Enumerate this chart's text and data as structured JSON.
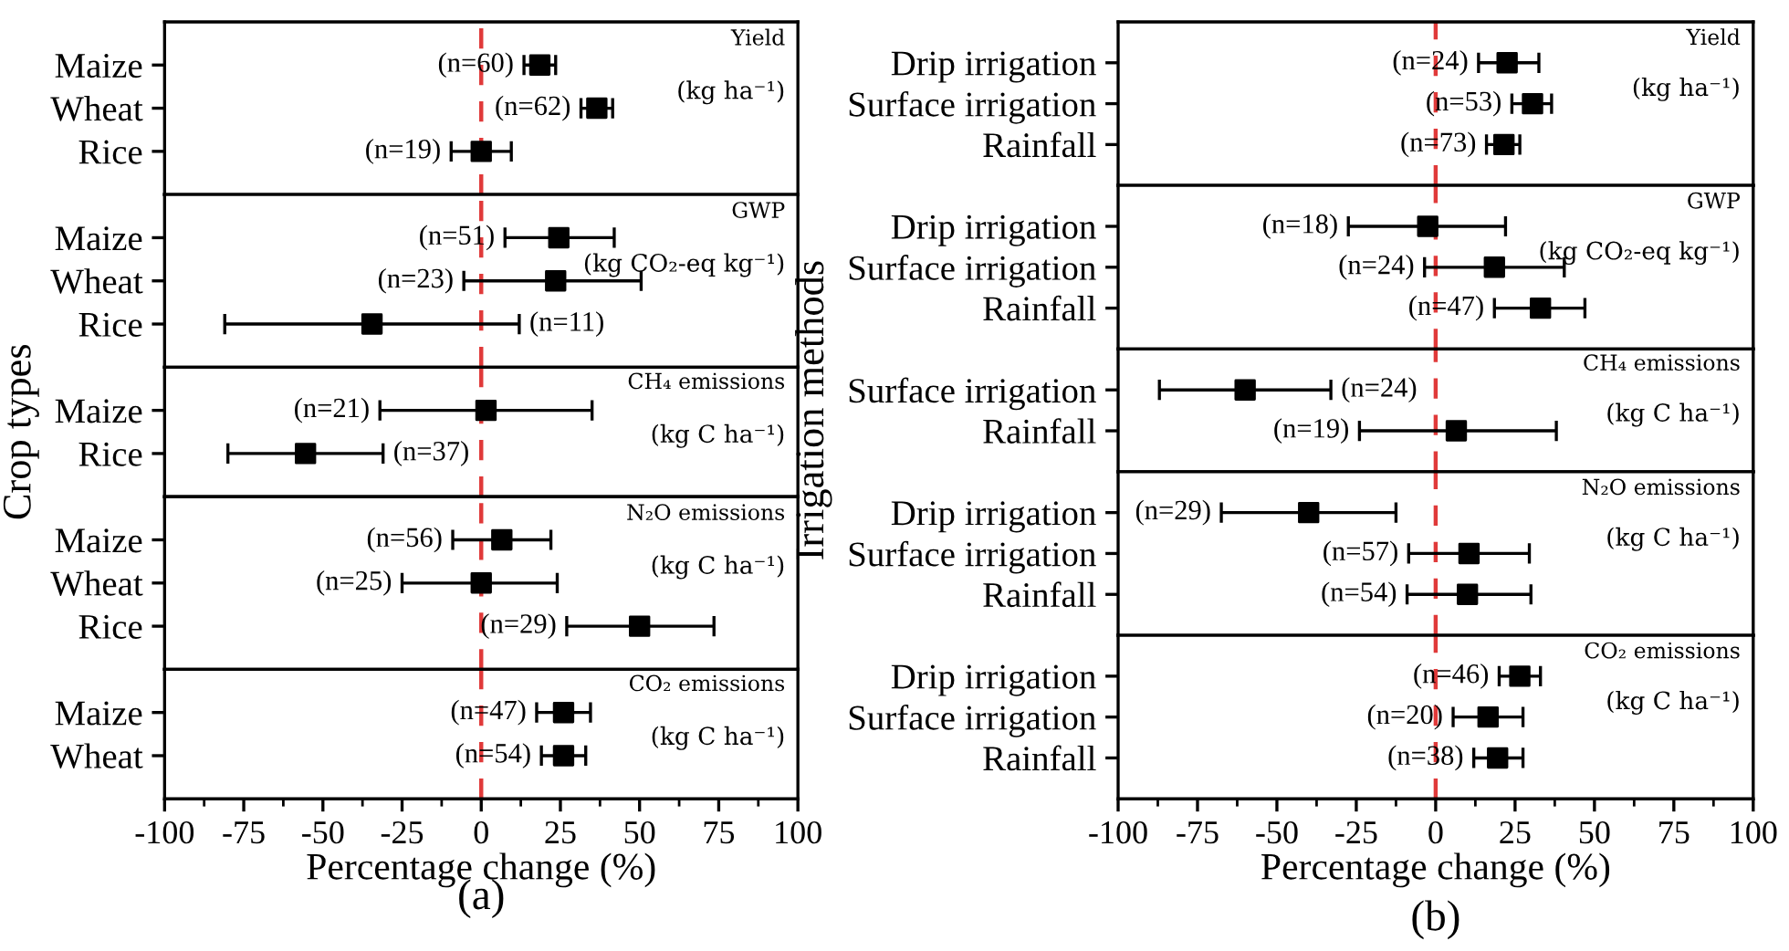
{
  "chart_data": [
    {
      "type": "scatter",
      "orientation": "horizontal",
      "categories": [
        "Maize",
        "Wheat",
        "Rice"
      ],
      "values": [
        18.5,
        36.5,
        0
      ],
      "errors": [
        [
          13.5,
          23.5
        ],
        [
          31.5,
          41.5
        ],
        [
          -9.5,
          9.5
        ]
      ],
      "color": "#000000",
      "marker": "square",
      "xlim": [
        -100,
        100
      ],
      "xticks": [
        -100,
        -75,
        -50,
        -25,
        0,
        25,
        50,
        75,
        100
      ],
      "tick_labels": "y",
      "ref_lines": [
        {
          "axis": "x",
          "value": 0,
          "color": "#e03a3a",
          "line_style": "dashed"
        }
      ],
      "annotations": [
        "Yield",
        "(kg ha⁻¹)",
        "(n=60)",
        "(n=62)",
        "(n=19)"
      ]
    },
    {
      "type": "scatter",
      "orientation": "horizontal",
      "categories": [
        "Maize",
        "Wheat",
        "Rice"
      ],
      "values": [
        24.5,
        23.5,
        -34.5
      ],
      "errors": [
        [
          7.5,
          42
        ],
        [
          -5.5,
          50.5
        ],
        [
          -81,
          12
        ]
      ],
      "color": "#000000",
      "marker": "square",
      "xlim": [
        -100,
        100
      ],
      "xticks": [
        -100,
        -75,
        -50,
        -25,
        0,
        25,
        50,
        75,
        100
      ],
      "tick_labels": "y",
      "ref_lines": [
        {
          "axis": "x",
          "value": 0,
          "color": "#e03a3a",
          "line_style": "dashed"
        }
      ],
      "annotations": [
        "GWP",
        "(kg CO₂-eq kg⁻¹)",
        "(n=51)",
        "(n=23)",
        "(n=11)"
      ]
    },
    {
      "type": "scatter",
      "orientation": "horizontal",
      "categories": [
        "Maize",
        "Rice"
      ],
      "values": [
        1.5,
        -55.5
      ],
      "errors": [
        [
          -32,
          35
        ],
        [
          -80,
          -31
        ]
      ],
      "color": "#000000",
      "marker": "square",
      "xlim": [
        -100,
        100
      ],
      "xticks": [
        -100,
        -75,
        -50,
        -25,
        0,
        25,
        50,
        75,
        100
      ],
      "tick_labels": "y",
      "ylabel": "Crop types",
      "ref_lines": [
        {
          "axis": "x",
          "value": 0,
          "color": "#e03a3a",
          "line_style": "dashed"
        }
      ],
      "annotations": [
        "CH₄ emissions",
        "(kg C ha⁻¹)",
        "(n=21)",
        "(n=37)"
      ]
    },
    {
      "type": "scatter",
      "orientation": "horizontal",
      "categories": [
        "Maize",
        "Wheat",
        "Rice"
      ],
      "values": [
        6.5,
        0,
        50
      ],
      "errors": [
        [
          -9,
          22
        ],
        [
          -25,
          24
        ],
        [
          27,
          73.5
        ]
      ],
      "color": "#000000",
      "marker": "square",
      "xlim": [
        -100,
        100
      ],
      "xticks": [
        -100,
        -75,
        -50,
        -25,
        0,
        25,
        50,
        75,
        100
      ],
      "tick_labels": "y",
      "ref_lines": [
        {
          "axis": "x",
          "value": 0,
          "color": "#e03a3a",
          "line_style": "dashed"
        }
      ],
      "annotations": [
        "N₂O emissions",
        "(kg C ha⁻¹)",
        "(n=56)",
        "(n=25)",
        "(n=29)"
      ]
    },
    {
      "type": "scatter",
      "orientation": "horizontal",
      "categories": [
        "Maize",
        "Wheat"
      ],
      "values": [
        26,
        26
      ],
      "errors": [
        [
          17.5,
          34.5
        ],
        [
          19,
          33
        ]
      ],
      "color": "#000000",
      "marker": "square",
      "xlim": [
        -100,
        100
      ],
      "xticks": [
        -100,
        -75,
        -50,
        -25,
        0,
        25,
        50,
        75,
        100
      ],
      "xlabel": "Percentage change (%)",
      "ref_lines": [
        {
          "axis": "x",
          "value": 0,
          "color": "#e03a3a",
          "line_style": "dashed"
        }
      ],
      "annotations": [
        "CO₂ emissions",
        "(kg C ha⁻¹)",
        "(n=47)",
        "(n=54)",
        "(a)"
      ]
    },
    {
      "type": "scatter",
      "orientation": "horizontal",
      "categories": [
        "Drip irrigation",
        "Surface irrigation",
        "Rainfall"
      ],
      "values": [
        22.5,
        30.5,
        21.5
      ],
      "errors": [
        [
          13.5,
          32.5
        ],
        [
          24,
          36.5
        ],
        [
          16,
          26.5
        ]
      ],
      "color": "#000000",
      "marker": "square",
      "xlim": [
        -100,
        100
      ],
      "xticks": [
        -100,
        -75,
        -50,
        -25,
        0,
        25,
        50,
        75,
        100
      ],
      "tick_labels": "y",
      "ref_lines": [
        {
          "axis": "x",
          "value": 0,
          "color": "#e03a3a",
          "line_style": "dashed"
        }
      ],
      "annotations": [
        "Yield",
        "(kg ha⁻¹)",
        "(n=24)",
        "(n=53)",
        "(n=73)"
      ]
    },
    {
      "type": "scatter",
      "orientation": "horizontal",
      "categories": [
        "Drip irrigation",
        "Surface irrigation",
        "Rainfall"
      ],
      "values": [
        -2.5,
        18.5,
        33
      ],
      "errors": [
        [
          -27.5,
          22
        ],
        [
          -3.5,
          40.5
        ],
        [
          18.5,
          47
        ]
      ],
      "color": "#000000",
      "marker": "square",
      "xlim": [
        -100,
        100
      ],
      "xticks": [
        -100,
        -75,
        -50,
        -25,
        0,
        25,
        50,
        75,
        100
      ],
      "tick_labels": "y",
      "ref_lines": [
        {
          "axis": "x",
          "value": 0,
          "color": "#e03a3a",
          "line_style": "dashed"
        }
      ],
      "annotations": [
        "GWP",
        "(kg CO₂-eq kg⁻¹)",
        "(n=18)",
        "(n=24)",
        "(n=47)"
      ]
    },
    {
      "type": "scatter",
      "orientation": "horizontal",
      "categories": [
        "Surface irrigation",
        "Rainfall"
      ],
      "values": [
        -60,
        6.5
      ],
      "errors": [
        [
          -87,
          -33
        ],
        [
          -24,
          38
        ]
      ],
      "color": "#000000",
      "marker": "square",
      "xlim": [
        -100,
        100
      ],
      "xticks": [
        -100,
        -75,
        -50,
        -25,
        0,
        25,
        50,
        75,
        100
      ],
      "tick_labels": "y",
      "ylabel": "Irrigation methods",
      "ref_lines": [
        {
          "axis": "x",
          "value": 0,
          "color": "#e03a3a",
          "line_style": "dashed"
        }
      ],
      "annotations": [
        "CH₄ emissions",
        "(kg C ha⁻¹)",
        "(n=24)",
        "(n=19)"
      ]
    },
    {
      "type": "scatter",
      "orientation": "horizontal",
      "categories": [
        "Drip irrigation",
        "Surface irrigation",
        "Rainfall"
      ],
      "values": [
        -40,
        10.5,
        10
      ],
      "errors": [
        [
          -67.5,
          -12.5
        ],
        [
          -8.5,
          29.5
        ],
        [
          -9,
          30
        ]
      ],
      "color": "#000000",
      "marker": "square",
      "xlim": [
        -100,
        100
      ],
      "xticks": [
        -100,
        -75,
        -50,
        -25,
        0,
        25,
        50,
        75,
        100
      ],
      "tick_labels": "y",
      "ref_lines": [
        {
          "axis": "x",
          "value": 0,
          "color": "#e03a3a",
          "line_style": "dashed"
        }
      ],
      "annotations": [
        "N₂O emissions",
        "(kg C ha⁻¹)",
        "(n=29)",
        "(n=57)",
        "(n=54)"
      ]
    },
    {
      "type": "scatter",
      "orientation": "horizontal",
      "categories": [
        "Drip irrigation",
        "Surface irrigation",
        "Rainfall"
      ],
      "values": [
        26.5,
        16.5,
        19.5
      ],
      "errors": [
        [
          20,
          33
        ],
        [
          5.5,
          27.5
        ],
        [
          12,
          27.5
        ]
      ],
      "color": "#000000",
      "marker": "square",
      "xlim": [
        -100,
        100
      ],
      "xticks": [
        -100,
        -75,
        -50,
        -25,
        0,
        25,
        50,
        75,
        100
      ],
      "xlabel": "Percentage change (%)",
      "ref_lines": [
        {
          "axis": "x",
          "value": 0,
          "color": "#e03a3a",
          "line_style": "dashed"
        }
      ],
      "annotations": [
        "CO₂ emissions",
        "(kg C ha⁻¹)",
        "(n=46)",
        "(n=20)",
        "(n=38)",
        "(b)"
      ]
    }
  ]
}
